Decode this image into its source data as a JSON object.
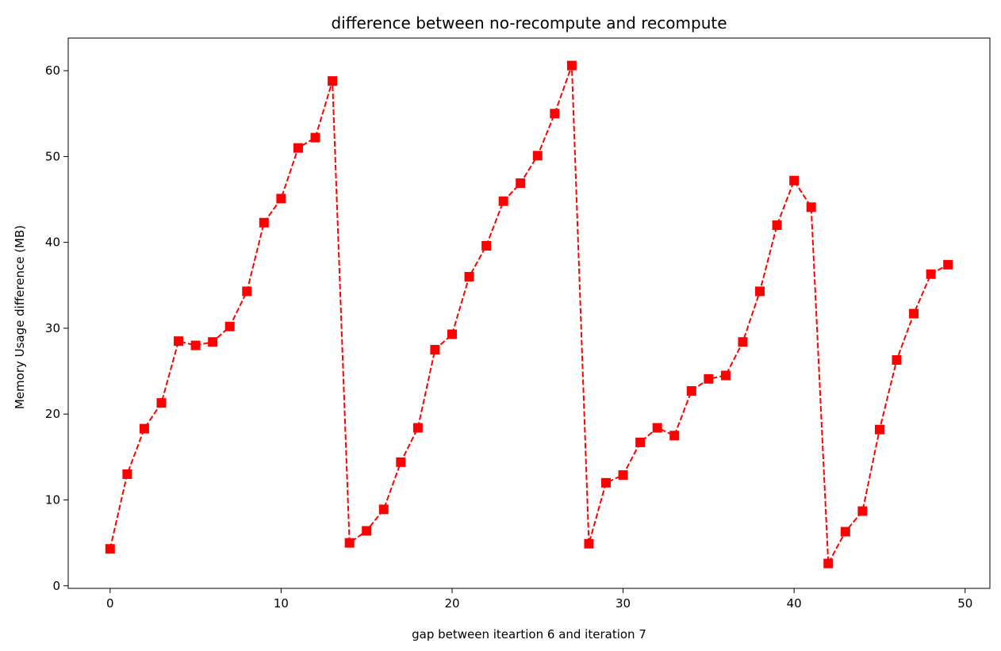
{
  "chart_data": {
    "type": "line",
    "title": "difference between no-recompute and recompute",
    "xlabel": "gap between iteartion 6 and iteration 7",
    "ylabel": "Memory Usage difference (MB)",
    "xlim": [
      -2.45,
      51.45
    ],
    "ylim": [
      -0.3,
      63.8
    ],
    "xticks": [
      0,
      10,
      20,
      30,
      40,
      50
    ],
    "yticks": [
      0,
      10,
      20,
      30,
      40,
      50,
      60
    ],
    "grid": false,
    "series": [
      {
        "color": "#ff0000",
        "line_style": "dashed",
        "marker": "square",
        "x": [
          0,
          1,
          2,
          3,
          4,
          5,
          6,
          7,
          8,
          9,
          10,
          11,
          12,
          13,
          14,
          15,
          16,
          17,
          18,
          19,
          20,
          21,
          22,
          23,
          24,
          25,
          26,
          27,
          28,
          29,
          30,
          31,
          32,
          33,
          34,
          35,
          36,
          37,
          38,
          39,
          40,
          41,
          42,
          43,
          44,
          45,
          46,
          47,
          48,
          49
        ],
        "y": [
          4.3,
          13.0,
          18.3,
          21.3,
          28.5,
          28.0,
          28.4,
          30.2,
          34.3,
          42.3,
          45.1,
          51.0,
          52.2,
          58.8,
          5.0,
          6.4,
          8.9,
          14.4,
          18.4,
          27.5,
          29.3,
          36.0,
          39.6,
          44.8,
          46.9,
          50.1,
          55.0,
          60.6,
          4.9,
          12.0,
          12.9,
          16.7,
          18.4,
          17.5,
          22.7,
          24.1,
          24.5,
          28.4,
          34.3,
          42.0,
          47.2,
          44.1,
          2.6,
          6.3,
          8.7,
          18.2,
          26.3,
          31.7,
          36.3,
          37.4
        ]
      }
    ]
  }
}
